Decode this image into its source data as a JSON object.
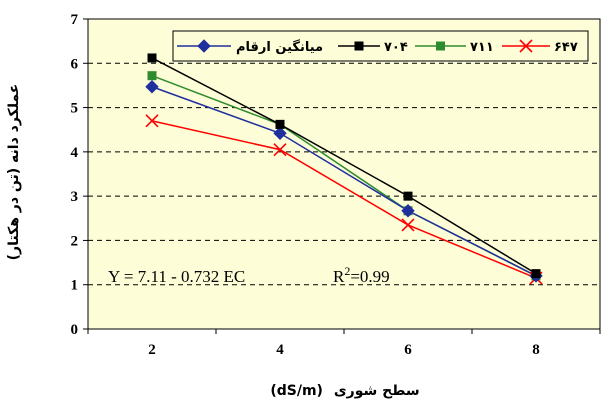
{
  "chart_data": {
    "type": "line",
    "x": [
      2,
      4,
      6,
      8
    ],
    "series": [
      {
        "name": "میانگین ارقام",
        "values": [
          5.47,
          4.42,
          2.67,
          1.2
        ],
        "color": "#1f2f9e",
        "marker": "diamond"
      },
      {
        "name": "۷۰۴",
        "values": [
          6.12,
          4.62,
          3.0,
          1.25
        ],
        "color": "#000000",
        "marker": "square"
      },
      {
        "name": "۷۱۱",
        "values": [
          5.72,
          4.62,
          2.67,
          1.2
        ],
        "color": "#2e8b2e",
        "marker": "square"
      },
      {
        "name": "۶۴۷",
        "values": [
          4.7,
          4.05,
          2.35,
          1.15
        ],
        "color": "#ff0000",
        "marker": "x"
      }
    ],
    "xlabel": "سطح شوری",
    "xlabel_unit": "(dS/m)",
    "ylabel": "عملکرد دانه (تن در هکتار)",
    "xlim": [
      1,
      9
    ],
    "ylim": [
      0,
      7
    ],
    "x_ticks": [
      "2",
      "4",
      "6",
      "8"
    ],
    "y_ticks": [
      "0",
      "1",
      "2",
      "3",
      "4",
      "5",
      "6",
      "7"
    ],
    "grid": "horizontal-dashed",
    "legend_position": "top",
    "annotation": {
      "eq": "Y = 7.11 - 0.732 EC",
      "r2_label": "R",
      "r2_sup": "2",
      "r2_value": "=0.99"
    },
    "plot_background": "#fdfdd7"
  }
}
